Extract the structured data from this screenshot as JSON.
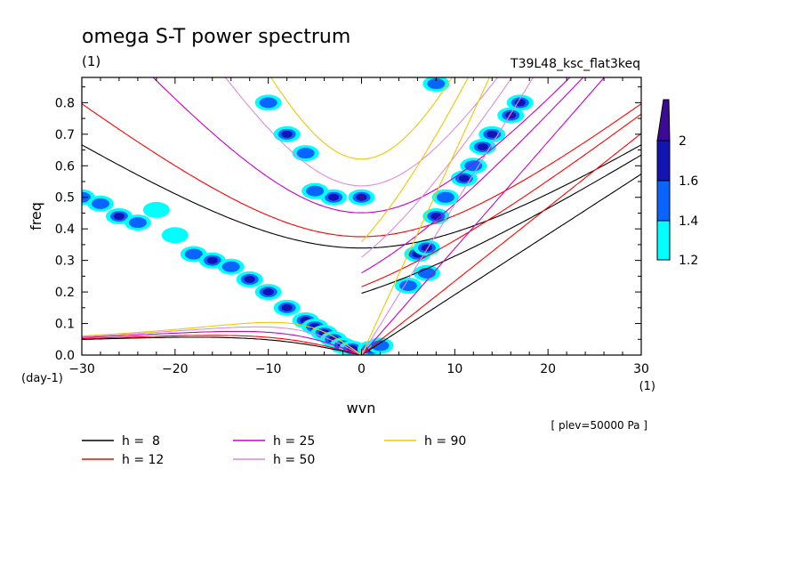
{
  "title": "omega S-T power spectrum",
  "title_units": "(1)",
  "run_name": "T39L48_ksc_flat3keq",
  "level_note": "[ plev=50000 Pa ]",
  "y_units": "(day-1)",
  "x_units": "(1)",
  "colorbar": {
    "labels": [
      "2",
      "1.6",
      "1.4",
      "1.2"
    ],
    "colors": {
      "c1": "#00ffff",
      "c2": "#0a64ff",
      "c3": "#1414b4",
      "c4": "#3c0a96"
    }
  },
  "chart_data": {
    "type": "contour",
    "xlabel": "wvn",
    "ylabel": "freq",
    "xlim": [
      -30,
      30
    ],
    "ylim": [
      0,
      0.88
    ],
    "x_ticks": [
      -30,
      -20,
      -10,
      0,
      10,
      20,
      30
    ],
    "x_tick_labels": [
      "-30",
      "-20",
      "-10",
      "0",
      "10",
      "20",
      "30"
    ],
    "y_ticks": [
      0,
      0.1,
      0.2,
      0.3,
      0.4,
      0.5,
      0.6,
      0.7,
      0.8
    ],
    "y_tick_labels": [
      "0.0",
      "0.1",
      "0.2",
      "0.3",
      "0.4",
      "0.5",
      "0.6",
      "0.7",
      "0.8"
    ],
    "contour_levels": [
      1.2,
      1.4,
      1.6,
      2
    ],
    "power_features": [
      {
        "x": -30,
        "y": 0.5,
        "level": 1.4
      },
      {
        "x": -28,
        "y": 0.48,
        "level": 1.4
      },
      {
        "x": -26,
        "y": 0.44,
        "level": 1.6
      },
      {
        "x": -24,
        "y": 0.42,
        "level": 1.4
      },
      {
        "x": -22,
        "y": 0.46,
        "level": 1.2
      },
      {
        "x": -20,
        "y": 0.38,
        "level": 1.2
      },
      {
        "x": -18,
        "y": 0.32,
        "level": 1.4
      },
      {
        "x": -16,
        "y": 0.3,
        "level": 1.6
      },
      {
        "x": -14,
        "y": 0.28,
        "level": 1.4
      },
      {
        "x": -12,
        "y": 0.24,
        "level": 1.6
      },
      {
        "x": -10,
        "y": 0.2,
        "level": 1.6
      },
      {
        "x": -8,
        "y": 0.15,
        "level": 1.6
      },
      {
        "x": -6,
        "y": 0.11,
        "level": 2
      },
      {
        "x": -5,
        "y": 0.09,
        "level": 1.6
      },
      {
        "x": -4,
        "y": 0.07,
        "level": 2
      },
      {
        "x": -3,
        "y": 0.05,
        "level": 2
      },
      {
        "x": -2,
        "y": 0.03,
        "level": 2
      },
      {
        "x": -1,
        "y": 0.02,
        "level": 2
      },
      {
        "x": 1,
        "y": 0.02,
        "level": 1.6
      },
      {
        "x": 2,
        "y": 0.03,
        "level": 1.4
      },
      {
        "x": -8,
        "y": 0.7,
        "level": 1.6
      },
      {
        "x": -6,
        "y": 0.64,
        "level": 1.4
      },
      {
        "x": -10,
        "y": 0.8,
        "level": 1.4
      },
      {
        "x": -3,
        "y": 0.5,
        "level": 1.6
      },
      {
        "x": 0,
        "y": 0.5,
        "level": 2
      },
      {
        "x": -5,
        "y": 0.52,
        "level": 1.4
      },
      {
        "x": 6,
        "y": 0.32,
        "level": 1.6
      },
      {
        "x": 7,
        "y": 0.34,
        "level": 2
      },
      {
        "x": 8,
        "y": 0.44,
        "level": 1.6
      },
      {
        "x": 9,
        "y": 0.5,
        "level": 1.4
      },
      {
        "x": 11,
        "y": 0.56,
        "level": 1.6
      },
      {
        "x": 12,
        "y": 0.6,
        "level": 1.4
      },
      {
        "x": 13,
        "y": 0.66,
        "level": 1.6
      },
      {
        "x": 14,
        "y": 0.7,
        "level": 1.6
      },
      {
        "x": 16,
        "y": 0.76,
        "level": 2
      },
      {
        "x": 17,
        "y": 0.8,
        "level": 1.6
      },
      {
        "x": 8,
        "y": 0.86,
        "level": 1.4
      },
      {
        "x": 7,
        "y": 0.26,
        "level": 1.4
      },
      {
        "x": 5,
        "y": 0.22,
        "level": 1.4
      }
    ],
    "series": [
      {
        "name": "h =  8",
        "h": 8,
        "color": "#000000"
      },
      {
        "name": "h = 12",
        "h": 12,
        "color": "#ff0000"
      },
      {
        "name": "h = 25",
        "h": 25,
        "color": "#c800c8"
      },
      {
        "name": "h = 50",
        "h": 50,
        "color": "#dc8cdc"
      },
      {
        "name": "h = 90",
        "h": 90,
        "color": "#f0c800"
      }
    ]
  }
}
